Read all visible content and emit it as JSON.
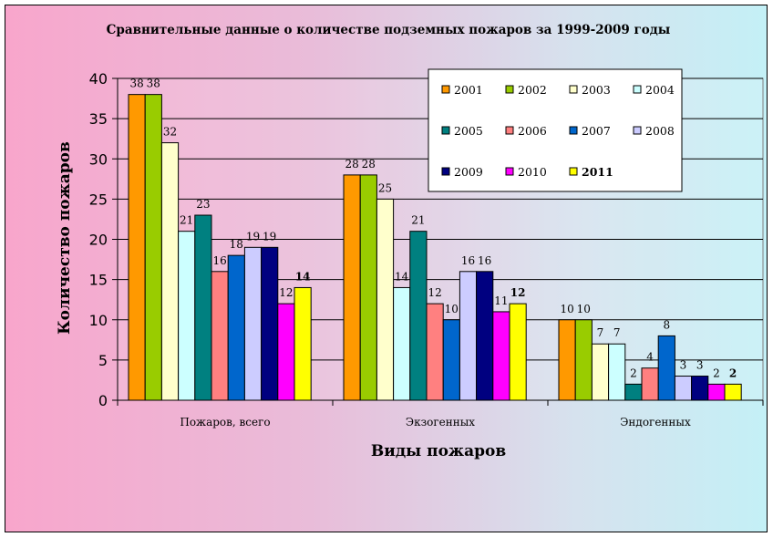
{
  "chart_data": {
    "type": "bar",
    "title": "Сравнительные данные о количестве подземных пожаров за 1999-2009 годы",
    "xlabel": "Виды пожаров",
    "ylabel": "Количество пожаров",
    "ylim": [
      0,
      40
    ],
    "yticks": [
      "0",
      "5",
      "10",
      "15",
      "20",
      "25",
      "30",
      "35",
      "40"
    ],
    "categories": [
      "Пожаров, всего",
      "Экзогенных",
      "Эндогенных"
    ],
    "grid": true,
    "legend_position": "top-right",
    "series": [
      {
        "name": "2001",
        "color": "#FF9900",
        "values": [
          38,
          28,
          10
        ]
      },
      {
        "name": "2002",
        "color": "#99CC00",
        "values": [
          38,
          28,
          10
        ]
      },
      {
        "name": "2003",
        "color": "#FFFFCC",
        "values": [
          32,
          25,
          7
        ]
      },
      {
        "name": "2004",
        "color": "#CCFFFF",
        "values": [
          21,
          14,
          7
        ]
      },
      {
        "name": "2005",
        "color": "#008080",
        "values": [
          23,
          21,
          2
        ]
      },
      {
        "name": "2006",
        "color": "#FF8080",
        "values": [
          16,
          12,
          4
        ]
      },
      {
        "name": "2007",
        "color": "#0066CC",
        "values": [
          18,
          10,
          8
        ]
      },
      {
        "name": "2008",
        "color": "#CCCCFF",
        "values": [
          19,
          16,
          3
        ]
      },
      {
        "name": "2009",
        "color": "#000080",
        "values": [
          19,
          16,
          3
        ]
      },
      {
        "name": "2010",
        "color": "#FF00FF",
        "values": [
          12,
          11,
          2
        ]
      },
      {
        "name": "2011",
        "color": "#FFFF00",
        "values": [
          14,
          12,
          2
        ],
        "bold": true
      }
    ]
  }
}
